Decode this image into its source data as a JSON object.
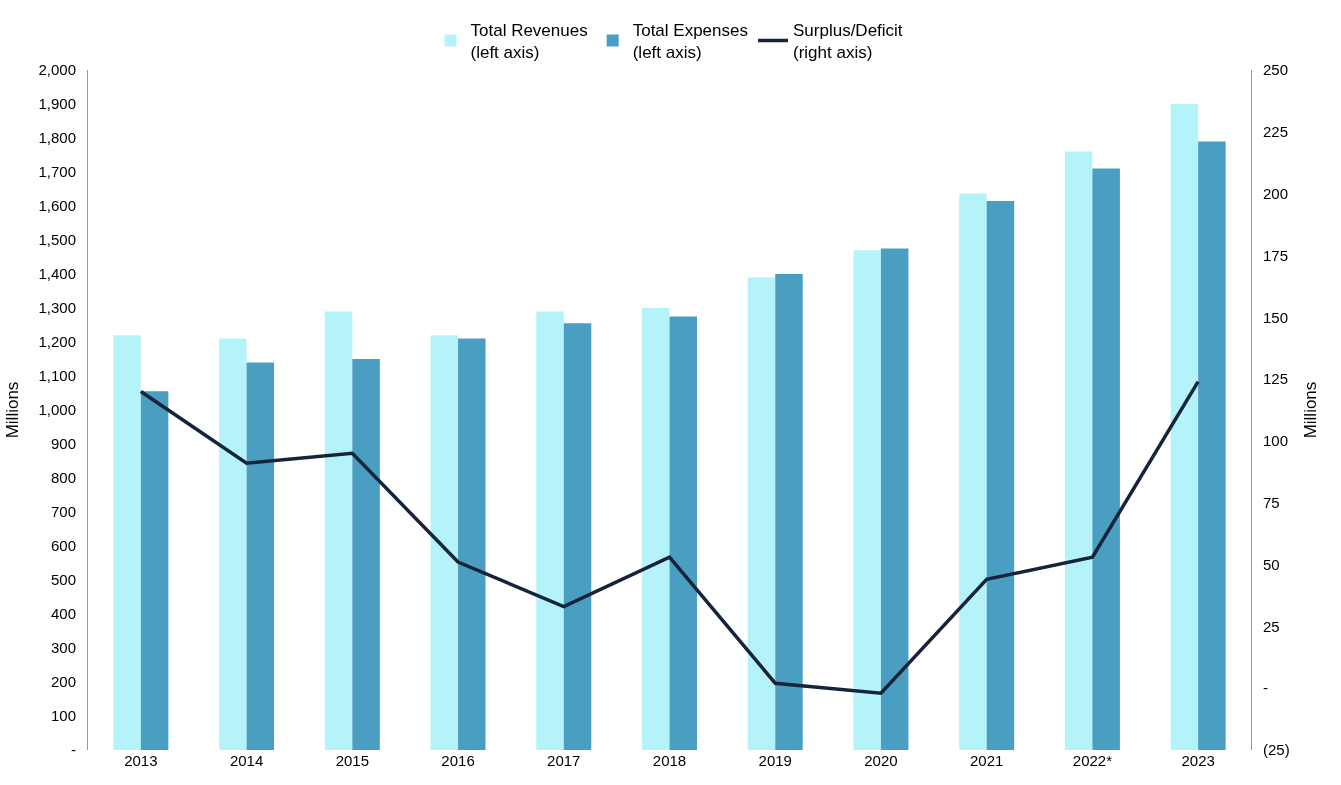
{
  "chart_data": {
    "type": "bar",
    "categories": [
      "2013",
      "2014",
      "2015",
      "2016",
      "2017",
      "2018",
      "2019",
      "2020",
      "2021",
      "2022*",
      "2023"
    ],
    "ylabel": "Millions",
    "y2label": "Millions",
    "ylim": [
      0,
      2000
    ],
    "yticks": [
      {
        "value": 0,
        "label": "-"
      },
      {
        "value": 100,
        "label": "100"
      },
      {
        "value": 200,
        "label": "200"
      },
      {
        "value": 300,
        "label": "300"
      },
      {
        "value": 400,
        "label": "400"
      },
      {
        "value": 500,
        "label": "500"
      },
      {
        "value": 600,
        "label": "600"
      },
      {
        "value": 700,
        "label": "700"
      },
      {
        "value": 800,
        "label": "800"
      },
      {
        "value": 900,
        "label": "900"
      },
      {
        "value": 1000,
        "label": "1,000"
      },
      {
        "value": 1100,
        "label": "1,100"
      },
      {
        "value": 1200,
        "label": "1,200"
      },
      {
        "value": 1300,
        "label": "1,300"
      },
      {
        "value": 1400,
        "label": "1,400"
      },
      {
        "value": 1500,
        "label": "1,500"
      },
      {
        "value": 1600,
        "label": "1,600"
      },
      {
        "value": 1700,
        "label": "1,700"
      },
      {
        "value": 1800,
        "label": "1,800"
      },
      {
        "value": 1900,
        "label": "1,900"
      },
      {
        "value": 2000,
        "label": "2,000"
      }
    ],
    "y2lim": [
      -25,
      250
    ],
    "y2ticks": [
      {
        "value": -25,
        "label": "(25)"
      },
      {
        "value": 0,
        "label": "-"
      },
      25,
      50,
      75,
      100,
      125,
      150,
      175,
      200,
      225,
      250
    ],
    "legend": "top",
    "series": [
      {
        "name": "Total Revenues\n(left axis)",
        "color": "#b5f3fa",
        "values": [
          1220,
          1210,
          1290,
          1220,
          1290,
          1300,
          1390,
          1470,
          1637,
          1760,
          1900
        ]
      },
      {
        "name": "Total Expenses\n(left axis)",
        "color": "#4a9ec2",
        "values": [
          1055,
          1140,
          1150,
          1210,
          1255,
          1275,
          1400,
          1475,
          1615,
          1710,
          1790
        ]
      },
      {
        "name": "Surplus/Deficit\n(right axis)",
        "color": "#15243a",
        "type": "line",
        "axis": "y2",
        "marker": "none",
        "line_style": "solid",
        "values": [
          120,
          91,
          95,
          51,
          33,
          53,
          2,
          -2,
          44,
          53,
          124
        ]
      }
    ]
  }
}
